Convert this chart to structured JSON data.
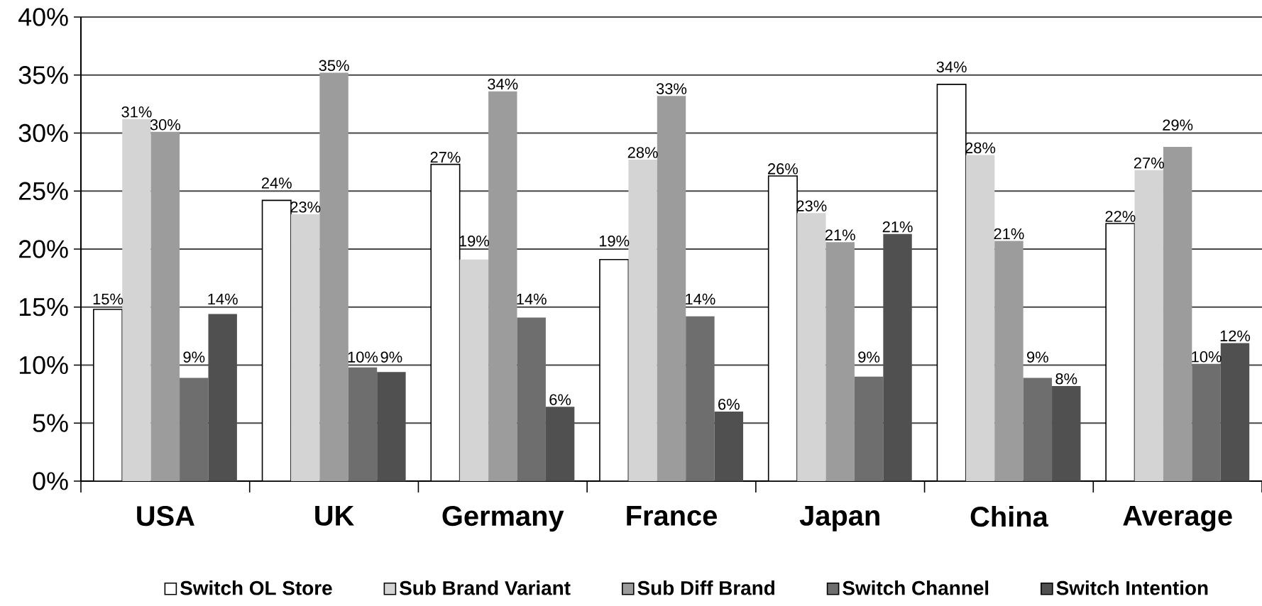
{
  "chart_data": {
    "type": "bar",
    "categories": [
      "USA",
      "UK",
      "Germany",
      "France",
      "Japan",
      "China",
      "Average"
    ],
    "series": [
      {
        "name": "Switch OL Store",
        "color": "#ffffff",
        "values": [
          14.8,
          24.2,
          27.3,
          19.1,
          26.3,
          34.2,
          22.2
        ],
        "value_labels": [
          "15%",
          "24%",
          "27%",
          "19%",
          "26%",
          "34%",
          "22%"
        ]
      },
      {
        "name": "Sub Brand Variant",
        "color": "#d4d4d4",
        "values": [
          31.2,
          23,
          19.1,
          27.7,
          23.1,
          28.1,
          26.8
        ],
        "value_labels": [
          "31%",
          "23%",
          "19%",
          "28%",
          "23%",
          "28%",
          "27%"
        ]
      },
      {
        "name": "Sub Diff Brand",
        "color": "#9c9c9c",
        "values": [
          30.1,
          35.2,
          33.6,
          33.2,
          20.6,
          20.7,
          28.8
        ],
        "value_labels": [
          "30%",
          "35%",
          "34%",
          "33%",
          "21%",
          "21%",
          "29%"
        ]
      },
      {
        "name": "Switch Channel",
        "color": "#6e6e6e",
        "values": [
          8.9,
          9.8,
          14.1,
          14.2,
          9.0,
          8.9,
          10.1
        ],
        "value_labels": [
          "9%",
          "10%",
          "14%",
          "14%",
          "9%",
          "9%",
          "10%"
        ]
      },
      {
        "name": "Switch Intention",
        "color": "#505050",
        "values": [
          14.4,
          9.4,
          6.4,
          6.0,
          21.3,
          8.2,
          11.9
        ],
        "value_labels": [
          "14%",
          "9%",
          "6%",
          "6%",
          "21%",
          "8%",
          "12%"
        ]
      }
    ],
    "ylim": [
      0,
      40
    ],
    "yticks": [
      {
        "value": 0,
        "label": "0%"
      },
      {
        "value": 5,
        "label": "5%"
      },
      {
        "value": 10,
        "label": "10%"
      },
      {
        "value": 15,
        "label": "15%"
      },
      {
        "value": 20,
        "label": "20%"
      },
      {
        "value": 25,
        "label": "25%"
      },
      {
        "value": 30,
        "label": "30%"
      },
      {
        "value": 35,
        "label": "35%"
      },
      {
        "value": 40,
        "label": "40%"
      }
    ],
    "grid": "y",
    "legend": "bottom"
  }
}
